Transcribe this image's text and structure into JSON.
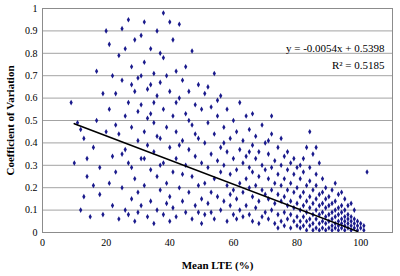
{
  "chart_data": {
    "type": "scatter",
    "x_label": "Mean LTE (%)",
    "y_label": "Coefficient of Variation",
    "xlim": [
      0,
      110
    ],
    "xticks": [
      0,
      20,
      40,
      60,
      80,
      100
    ],
    "ylim": [
      0,
      1
    ],
    "yticks": [
      0,
      0.1,
      0.2,
      0.3,
      0.4,
      0.5,
      0.6,
      0.7,
      0.8,
      0.9,
      1
    ],
    "grid": true,
    "color": "#1a1a8c",
    "marker": "diamond",
    "x": [
      9,
      10,
      11,
      12,
      13,
      14,
      15,
      16,
      17,
      18,
      18,
      19,
      20,
      20,
      19,
      17,
      16,
      14,
      13,
      12,
      21,
      21,
      22,
      22,
      23,
      23,
      24,
      24,
      24,
      25,
      25,
      25,
      26,
      26,
      26,
      27,
      27,
      27,
      28,
      28,
      28,
      29,
      29,
      29,
      29,
      30,
      30,
      30,
      21,
      23,
      25,
      27,
      28,
      30,
      30,
      22,
      26,
      28,
      31,
      31,
      31,
      31,
      32,
      32,
      32,
      32,
      33,
      33,
      33,
      34,
      34,
      34,
      34,
      35,
      35,
      35,
      35,
      36,
      36,
      36,
      36,
      37,
      37,
      37,
      38,
      38,
      38,
      38,
      38,
      39,
      39,
      39,
      40,
      40,
      40,
      40,
      40,
      33,
      35,
      37,
      39,
      36,
      34,
      32,
      31,
      37,
      41,
      41,
      41,
      41,
      42,
      42,
      42,
      42,
      43,
      43,
      43,
      44,
      44,
      44,
      45,
      45,
      45,
      45,
      46,
      46,
      46,
      47,
      47,
      47,
      47,
      48,
      48,
      48,
      49,
      49,
      49,
      50,
      50,
      50,
      50,
      43,
      46,
      48,
      44,
      42,
      49,
      51,
      51,
      51,
      51,
      52,
      52,
      52,
      53,
      53,
      53,
      54,
      54,
      54,
      54,
      55,
      55,
      55,
      56,
      56,
      56,
      56,
      57,
      57,
      57,
      58,
      58,
      58,
      58,
      59,
      59,
      59,
      60,
      60,
      60,
      60,
      52,
      55,
      57,
      59,
      53,
      61,
      61,
      61,
      61,
      62,
      62,
      62,
      62,
      63,
      63,
      63,
      64,
      64,
      64,
      64,
      65,
      65,
      65,
      65,
      66,
      66,
      66,
      66,
      67,
      67,
      67,
      67,
      68,
      68,
      68,
      69,
      69,
      69,
      69,
      70,
      70,
      70,
      70,
      63,
      66,
      68,
      65,
      71,
      71,
      71,
      71,
      72,
      72,
      72,
      72,
      73,
      73,
      73,
      73,
      74,
      74,
      74,
      74,
      75,
      75,
      75,
      75,
      76,
      76,
      76,
      76,
      76,
      77,
      77,
      77,
      77,
      78,
      78,
      78,
      78,
      78,
      79,
      79,
      79,
      79,
      80,
      80,
      80,
      80,
      80,
      72,
      75,
      77,
      79,
      74,
      71,
      81,
      81,
      81,
      81,
      81,
      82,
      82,
      82,
      82,
      82,
      83,
      83,
      83,
      83,
      83,
      84,
      84,
      84,
      84,
      84,
      85,
      85,
      85,
      85,
      85,
      86,
      86,
      86,
      86,
      86,
      87,
      87,
      87,
      87,
      87,
      88,
      88,
      88,
      88,
      88,
      89,
      89,
      89,
      89,
      89,
      90,
      90,
      90,
      90,
      90,
      82,
      84,
      86,
      88,
      85,
      83,
      87,
      89,
      81,
      84,
      86,
      91,
      91,
      91,
      91,
      91,
      92,
      92,
      92,
      92,
      92,
      93,
      93,
      93,
      93,
      93,
      94,
      94,
      94,
      94,
      94,
      95,
      95,
      95,
      95,
      95,
      96,
      96,
      96,
      96,
      97,
      97,
      97,
      97,
      98,
      98,
      98,
      99,
      99,
      99,
      100,
      100,
      101,
      101,
      91,
      93,
      95,
      92,
      94,
      96,
      98,
      102,
      97
    ],
    "values": [
      0.58,
      0.31,
      0.49,
      0.1,
      0.42,
      0.25,
      0.07,
      0.38,
      0.5,
      0.17,
      0.29,
      0.62,
      0.9,
      0.45,
      0.08,
      0.72,
      0.21,
      0.33,
      0.16,
      0.46,
      0.84,
      0.55,
      0.34,
      0.12,
      0.62,
      0.27,
      0.79,
      0.44,
      0.06,
      0.68,
      0.91,
      0.2,
      0.52,
      0.37,
      0.1,
      0.95,
      0.58,
      0.31,
      0.74,
      0.47,
      0.15,
      0.86,
      0.63,
      0.24,
      0.05,
      0.69,
      0.41,
      0.18,
      0.22,
      0.48,
      0.35,
      0.08,
      0.66,
      0.54,
      0.09,
      0.7,
      0.82,
      0.29,
      0.88,
      0.57,
      0.33,
      0.12,
      0.94,
      0.76,
      0.45,
      0.21,
      0.64,
      0.39,
      0.07,
      0.82,
      0.53,
      0.28,
      0.14,
      0.71,
      0.49,
      0.36,
      0.04,
      0.9,
      0.61,
      0.25,
      0.1,
      0.67,
      0.42,
      0.19,
      0.98,
      0.78,
      0.55,
      0.31,
      0.08,
      0.7,
      0.47,
      0.22,
      0.94,
      0.63,
      0.38,
      0.16,
      0.05,
      0.51,
      0.58,
      0.3,
      0.13,
      0.43,
      0.66,
      0.33,
      0.7,
      0.8,
      0.86,
      0.52,
      0.27,
      0.11,
      0.72,
      0.45,
      0.33,
      0.07,
      0.93,
      0.6,
      0.2,
      0.68,
      0.41,
      0.14,
      0.74,
      0.53,
      0.3,
      0.09,
      0.63,
      0.37,
      0.18,
      0.81,
      0.48,
      0.25,
      0.06,
      0.57,
      0.34,
      0.12,
      0.66,
      0.42,
      0.21,
      0.55,
      0.31,
      0.15,
      0.04,
      0.39,
      0.5,
      0.44,
      0.26,
      0.58,
      0.09,
      0.62,
      0.4,
      0.22,
      0.08,
      0.49,
      0.29,
      0.13,
      0.56,
      0.35,
      0.18,
      0.71,
      0.44,
      0.24,
      0.06,
      0.52,
      0.32,
      0.16,
      0.61,
      0.38,
      0.27,
      0.1,
      0.47,
      0.3,
      0.14,
      0.55,
      0.36,
      0.21,
      0.05,
      0.42,
      0.26,
      0.12,
      0.5,
      0.33,
      0.19,
      0.08,
      0.65,
      0.59,
      0.4,
      0.17,
      0.09,
      0.45,
      0.28,
      0.15,
      0.06,
      0.58,
      0.37,
      0.22,
      0.1,
      0.41,
      0.31,
      0.18,
      0.52,
      0.34,
      0.24,
      0.12,
      0.46,
      0.29,
      0.2,
      0.08,
      0.39,
      0.27,
      0.16,
      0.05,
      0.43,
      0.33,
      0.21,
      0.11,
      0.36,
      0.25,
      0.14,
      0.48,
      0.3,
      0.19,
      0.07,
      0.4,
      0.28,
      0.17,
      0.09,
      0.07,
      0.53,
      0.04,
      0.36,
      0.35,
      0.24,
      0.15,
      0.06,
      0.44,
      0.29,
      0.19,
      0.1,
      0.32,
      0.22,
      0.13,
      0.04,
      0.38,
      0.26,
      0.17,
      0.08,
      0.3,
      0.21,
      0.14,
      0.05,
      0.34,
      0.24,
      0.16,
      0.09,
      0.03,
      0.28,
      0.19,
      0.12,
      0.06,
      0.31,
      0.22,
      0.14,
      0.08,
      0.02,
      0.26,
      0.18,
      0.11,
      0.05,
      0.29,
      0.2,
      0.13,
      0.07,
      0.03,
      0.52,
      0.42,
      0.36,
      0.33,
      0.02,
      0.41,
      0.24,
      0.16,
      0.1,
      0.05,
      0.02,
      0.27,
      0.18,
      0.12,
      0.07,
      0.03,
      0.21,
      0.14,
      0.09,
      0.05,
      0.01,
      0.23,
      0.16,
      0.11,
      0.06,
      0.03,
      0.19,
      0.13,
      0.08,
      0.04,
      0.01,
      0.21,
      0.15,
      0.1,
      0.06,
      0.02,
      0.17,
      0.12,
      0.08,
      0.04,
      0.01,
      0.18,
      0.13,
      0.09,
      0.05,
      0.02,
      0.15,
      0.11,
      0.07,
      0.04,
      0.01,
      0.16,
      0.12,
      0.08,
      0.05,
      0.02,
      0.33,
      0.29,
      0.26,
      0.24,
      0.35,
      0.38,
      0.31,
      0.2,
      0.3,
      0.45,
      0.38,
      0.13,
      0.09,
      0.06,
      0.03,
      0.01,
      0.14,
      0.1,
      0.07,
      0.04,
      0.02,
      0.11,
      0.08,
      0.05,
      0.03,
      0.01,
      0.12,
      0.09,
      0.06,
      0.04,
      0.02,
      0.1,
      0.07,
      0.05,
      0.03,
      0.01,
      0.08,
      0.06,
      0.04,
      0.02,
      0.07,
      0.05,
      0.03,
      0.01,
      0.06,
      0.04,
      0.02,
      0.05,
      0.03,
      0.01,
      0.04,
      0.02,
      0.03,
      0.01,
      0.19,
      0.17,
      0.15,
      0.22,
      0.18,
      0.12,
      0.1,
      0.27,
      0.13
    ],
    "trendline": {
      "x": [
        10,
        99
      ],
      "values": [
        0.486,
        0.005
      ],
      "color": "#000000",
      "line_style": "solid"
    },
    "annotations": [
      "y = -0.0054x + 0.5398",
      "R² = 0.5185"
    ]
  }
}
